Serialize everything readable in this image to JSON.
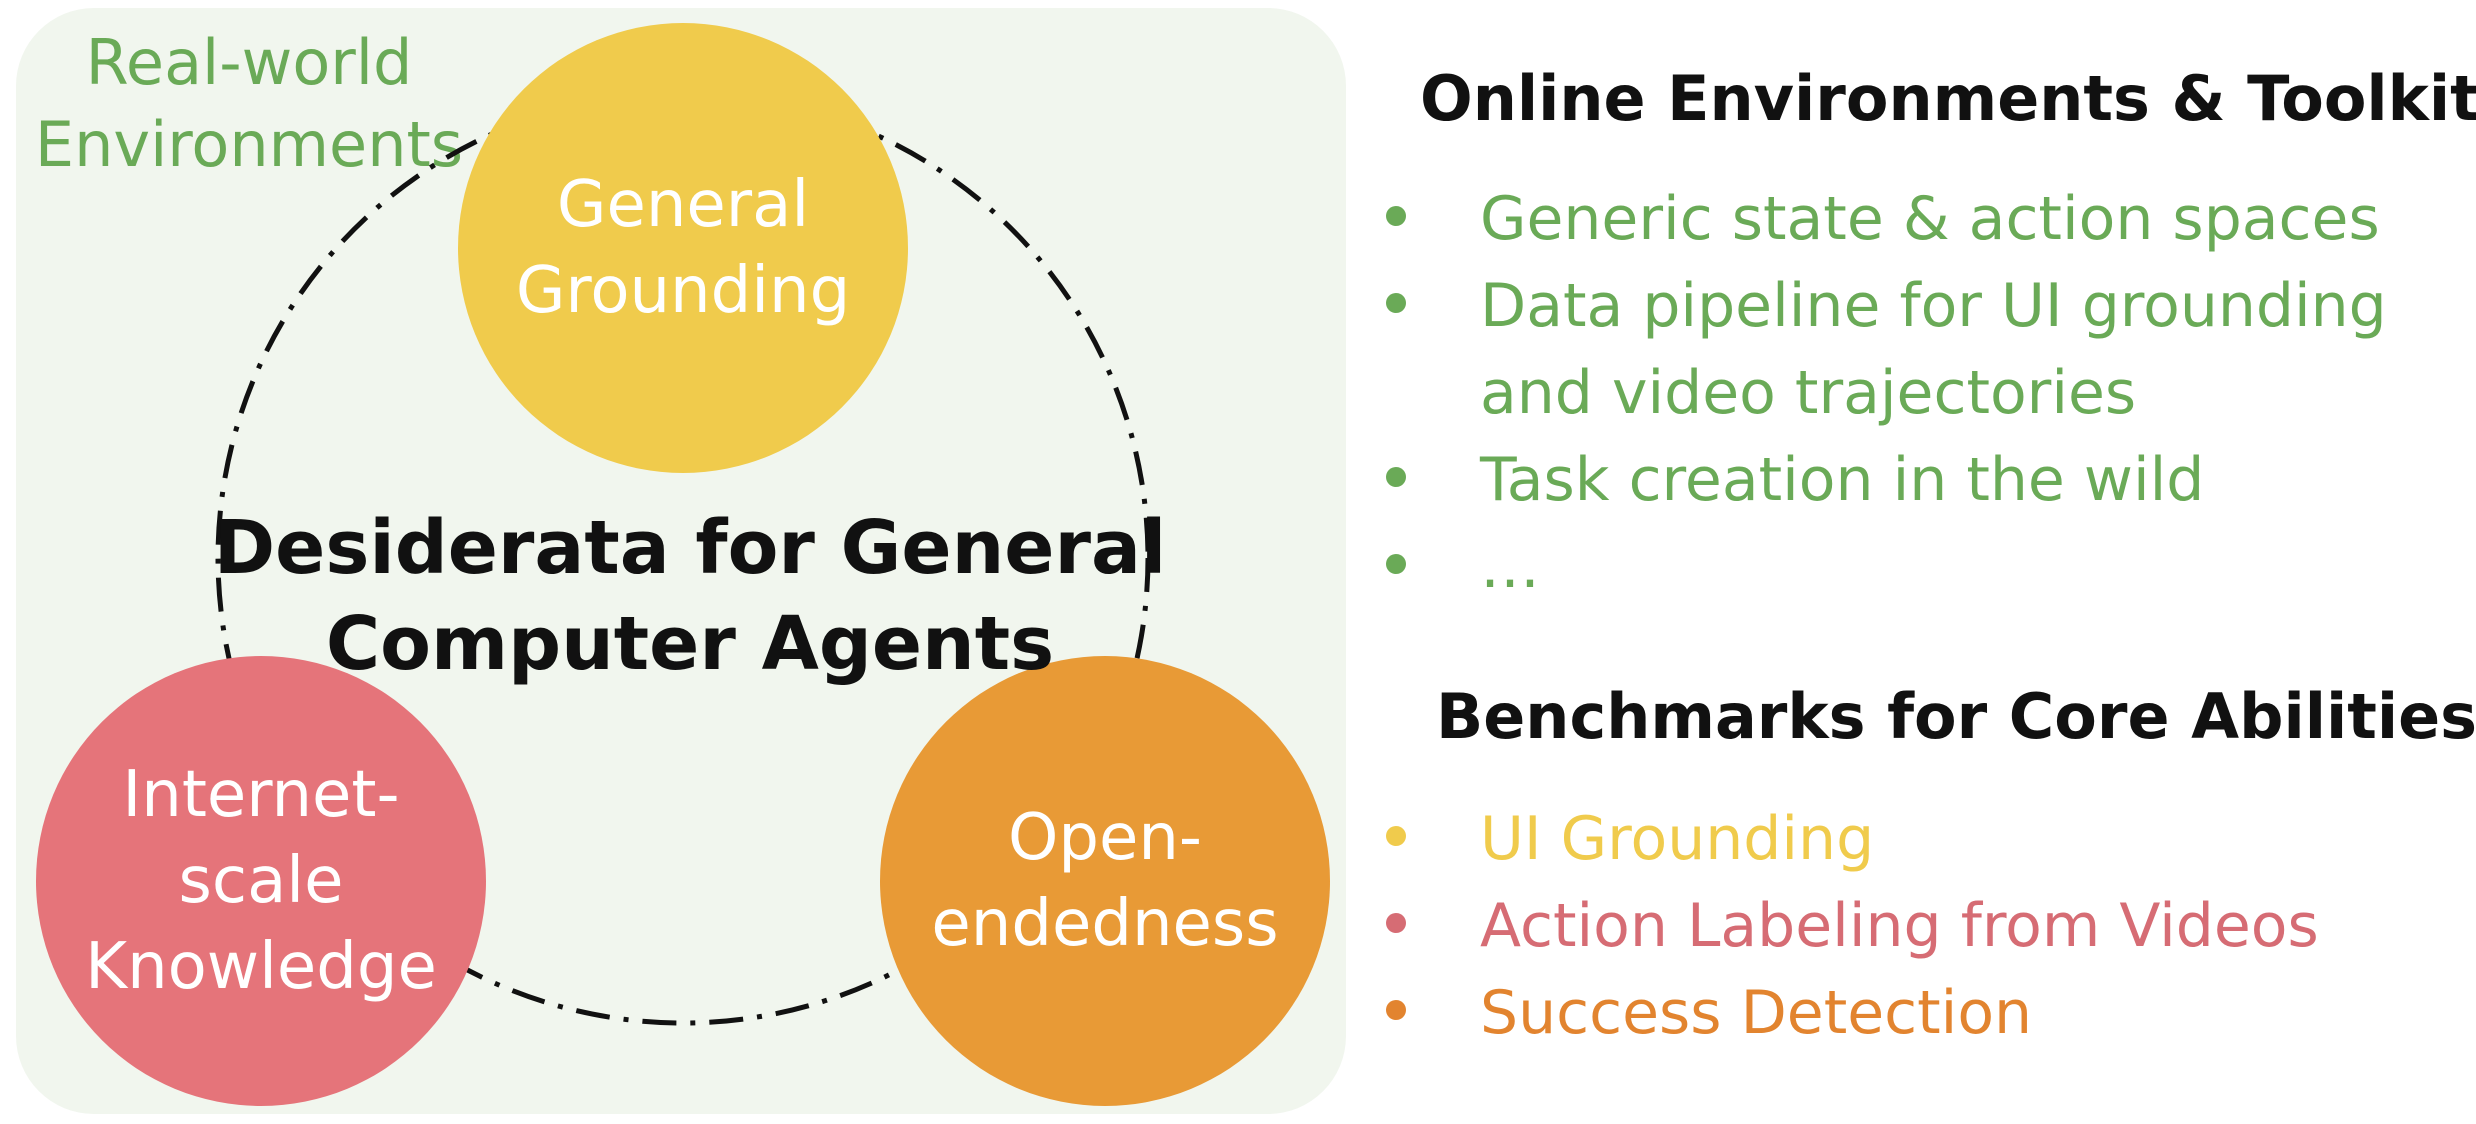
{
  "colors": {
    "green": "#6AAA57",
    "yellow": "#F0CB4C",
    "red": "#E5747A",
    "orange": "#E89A36",
    "orange_text": "#E2842F",
    "red_text": "#D66C74",
    "panel_bg": "#F1F6EE"
  },
  "left_panel": {
    "env_label": "Real-world\nEnvironments",
    "center_title": "Desiderata for General\nComputer Agents",
    "nodes": {
      "grounding": "General\nGrounding",
      "knowledge": "Internet-\nscale\nKnowledge",
      "openended": "Open-\nendedness"
    }
  },
  "online_section": {
    "title": "Online Environments & Toolkits",
    "items": [
      {
        "text": "Generic state & action spaces",
        "color": "#6AAA57"
      },
      {
        "text": "Data pipeline for UI grounding\nand video trajectories",
        "color": "#6AAA57"
      },
      {
        "text": "Task creation in the wild",
        "color": "#6AAA57"
      },
      {
        "text": "…",
        "color": "#6AAA57"
      }
    ]
  },
  "benchmark_section": {
    "title": "Benchmarks for Core Abilities",
    "items": [
      {
        "text": "UI Grounding",
        "color": "#F0CB4C"
      },
      {
        "text": "Action Labeling from Videos",
        "color": "#D66C74"
      },
      {
        "text": "Success Detection",
        "color": "#E2842F"
      }
    ]
  }
}
